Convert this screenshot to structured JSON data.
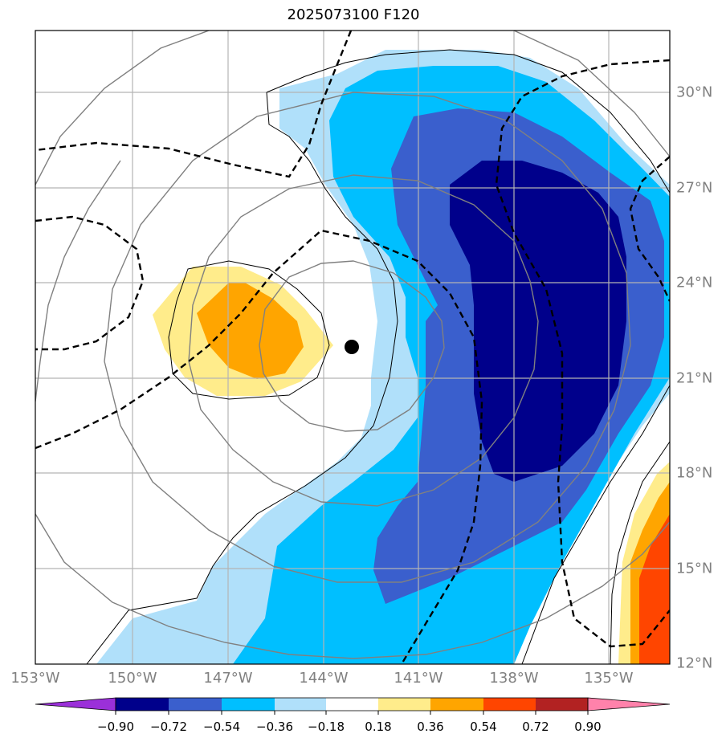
{
  "title": "2025073100 F120",
  "map": {
    "lon_labels": [
      "153°W",
      "150°W",
      "147°W",
      "144°W",
      "141°W",
      "138°W",
      "135°W"
    ],
    "lat_labels": [
      "30°N",
      "27°N",
      "24°N",
      "21°N",
      "18°N",
      "15°N",
      "12°N"
    ],
    "center_marker": "storm-center"
  },
  "colorbar": {
    "levels": [
      "−0.90",
      "−0.72",
      "−0.54",
      "−0.36",
      "−0.18",
      "0.18",
      "0.36",
      "0.54",
      "0.72",
      "0.90"
    ],
    "colors": {
      "lt_-0.90": "#9b30d9",
      "-0.90_-0.72": "#00008b",
      "-0.72_-0.54": "#3a5fcd",
      "-0.54_-0.36": "#00bfff",
      "-0.36_-0.18": "#b0e0fa",
      "-0.18_0.18": "#ffffff",
      "0.18_0.36": "#ffec8b",
      "0.36_0.54": "#ffa500",
      "0.54_0.72": "#ff4500",
      "0.72_0.90": "#b22222",
      "gt_0.90": "#ff82ab"
    }
  }
}
